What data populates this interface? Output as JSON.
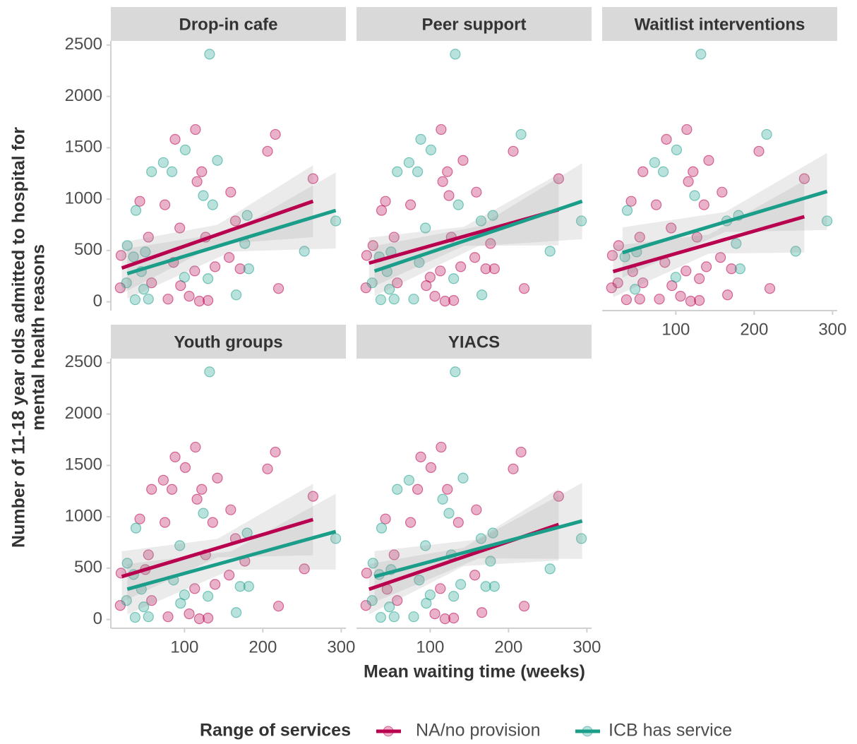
{
  "chart_data": {
    "type": "scatter",
    "x_label": "Mean waiting time (weeks)",
    "y_label": [
      "Number of 11-18 year olds admitted to hospital for",
      "mental health reasons"
    ],
    "legend_title": "Range of services",
    "series": [
      {
        "name": "NA/no provision",
        "color": "#b8004f"
      },
      {
        "name": "ICB has service",
        "color": "#1a9e8a"
      }
    ],
    "xlim": [
      6,
      306
    ],
    "ylim": [
      -85,
      2540
    ],
    "xticks": [
      100,
      200,
      300
    ],
    "yticks": [
      0,
      500,
      1000,
      1500,
      2000,
      2500
    ],
    "facets": [
      {
        "title": "Drop-in cafe",
        "series": [
          {
            "x": [
              114,
              88,
              216,
              206,
              122,
              116,
              264,
              159,
              43,
              75,
              165,
              94,
              54,
              127,
              19,
              157,
              86,
              139,
              171,
              113,
              58,
              95,
              220,
              18,
              106,
              79,
              130,
              119
            ],
            "y": [
              1678,
              1582,
              1630,
              1466,
              1267,
              1171,
              1199,
              1068,
              979,
              945,
              788,
              719,
              630,
              630,
              452,
              432,
              384,
              342,
              322,
              301,
              185,
              158,
              130,
              137,
              55,
              27,
              14,
              7
            ],
            "fit": {
              "x": [
                20,
                264
              ],
              "y": [
                329,
                979
              ]
            },
            "band": {
              "x": [
                20,
                142,
                264
              ],
              "lower": [
                80,
                560,
                630
              ],
              "upper": [
                580,
                750,
                1330
              ]
            }
          },
          {
            "x": [
              132,
              101,
              73,
              142,
              84,
              58,
              124,
              136,
              38,
              180,
              293,
              177,
              27,
              253,
              50,
              35,
              182,
              45,
              100,
              130,
              26,
              166,
              48,
              37,
              54
            ],
            "y": [
              2411,
              1479,
              1356,
              1377,
              1267,
              1267,
              1034,
              945,
              890,
              842,
              788,
              568,
              548,
              493,
              486,
              438,
              322,
              295,
              240,
              226,
              185,
              68,
              123,
              21,
              27
            ],
            "fit": {
              "x": [
                27,
                293
              ],
              "y": [
                275,
                890
              ]
            },
            "band": {
              "x": [
                27,
                160,
                293
              ],
              "lower": [
                30,
                490,
                520
              ],
              "upper": [
                520,
                680,
                1260
              ]
            }
          }
        ]
      },
      {
        "title": "Peer support",
        "series": [
          {
            "x": [
              114,
              206,
              142,
              122,
              116,
              264,
              124,
              159,
              43,
              75,
              38,
              54,
              127,
              177,
              27,
              19,
              157,
              139,
              171,
              182,
              113,
              100,
              58,
              95,
              220,
              18,
              106,
              130,
              119
            ],
            "y": [
              1678,
              1466,
              1377,
              1267,
              1171,
              1199,
              1034,
              1068,
              979,
              945,
              890,
              630,
              630,
              568,
              548,
              452,
              432,
              342,
              322,
              322,
              301,
              240,
              185,
              158,
              130,
              137,
              55,
              14,
              7
            ],
            "fit": {
              "x": [
                22,
                264
              ],
              "y": [
                377,
                897
              ]
            },
            "band": {
              "x": [
                22,
                143,
                264
              ],
              "lower": [
                130,
                545,
                550
              ],
              "upper": [
                625,
                730,
                1245
              ]
            }
          },
          {
            "x": [
              132,
              88,
              216,
              101,
              73,
              84,
              58,
              136,
              180,
              293,
              165,
              94,
              253,
              50,
              35,
              86,
              45,
              130,
              26,
              166,
              48,
              37,
              54,
              79
            ],
            "y": [
              2411,
              1582,
              1630,
              1479,
              1356,
              1267,
              1267,
              945,
              842,
              788,
              788,
              719,
              493,
              486,
              438,
              384,
              295,
              226,
              185,
              68,
              123,
              21,
              27,
              27
            ],
            "fit": {
              "x": [
                29,
                294
              ],
              "y": [
                300,
                979
              ]
            },
            "band": {
              "x": [
                29,
                162,
                294
              ],
              "lower": [
                55,
                545,
                610
              ],
              "upper": [
                545,
                735,
                1350
              ]
            }
          }
        ]
      },
      {
        "title": "Waitlist interventions",
        "series": [
          {
            "x": [
              114,
              88,
              206,
              142,
              58,
              122,
              116,
              264,
              159,
              136,
              43,
              75,
              94,
              54,
              127,
              27,
              19,
              157,
              86,
              139,
              171,
              113,
              45,
              130,
              58,
              26,
              95,
              220,
              18,
              166,
              106,
              37,
              54,
              79,
              130,
              119
            ],
            "y": [
              1678,
              1582,
              1466,
              1377,
              1267,
              1267,
              1171,
              1199,
              1068,
              945,
              979,
              945,
              719,
              630,
              630,
              548,
              452,
              432,
              384,
              342,
              322,
              301,
              295,
              226,
              185,
              185,
              158,
              130,
              137,
              68,
              55,
              21,
              27,
              27,
              14,
              7
            ],
            "fit": {
              "x": [
                20,
                264
              ],
              "y": [
                295,
                829
              ]
            },
            "band": {
              "x": [
                20,
                142,
                264
              ],
              "lower": [
                45,
                470,
                480
              ],
              "upper": [
                545,
                655,
                1180
              ]
            }
          },
          {
            "x": [
              132,
              216,
              101,
              73,
              84,
              124,
              38,
              180,
              293,
              165,
              177,
              253,
              50,
              35,
              182,
              100,
              48
            ],
            "y": [
              2411,
              1630,
              1479,
              1356,
              1267,
              1034,
              890,
              842,
              788,
              788,
              568,
              493,
              486,
              438,
              322,
              240,
              123
            ],
            "fit": {
              "x": [
                32,
                293
              ],
              "y": [
                479,
                1075
              ]
            },
            "band": {
              "x": [
                32,
                163,
                293
              ],
              "lower": [
                235,
                680,
                700
              ],
              "upper": [
                725,
                875,
                1450
              ]
            }
          }
        ]
      },
      {
        "title": "Youth groups",
        "series": [
          {
            "x": [
              114,
              88,
              216,
              101,
              206,
              73,
              142,
              84,
              58,
              122,
              116,
              264,
              159,
              136,
              43,
              75,
              165,
              54,
              127,
              177,
              253,
              50,
              19,
              157,
              139,
              113,
              58,
              220,
              18,
              106,
              79,
              130,
              119
            ],
            "y": [
              1678,
              1582,
              1630,
              1479,
              1466,
              1356,
              1377,
              1267,
              1267,
              1267,
              1171,
              1199,
              1068,
              945,
              979,
              945,
              788,
              630,
              630,
              568,
              493,
              486,
              452,
              432,
              342,
              301,
              185,
              130,
              137,
              55,
              27,
              14,
              7
            ],
            "fit": {
              "x": [
                20,
                264
              ],
              "y": [
                418,
                973
              ]
            },
            "band": {
              "x": [
                20,
                142,
                264
              ],
              "lower": [
                170,
                605,
                625
              ],
              "upper": [
                665,
                785,
                1320
              ]
            }
          },
          {
            "x": [
              132,
              124,
              38,
              180,
              293,
              94,
              27,
              35,
              86,
              171,
              182,
              45,
              100,
              130,
              26,
              95,
              166,
              48,
              37,
              54
            ],
            "y": [
              2411,
              1034,
              890,
              842,
              788,
              719,
              548,
              438,
              384,
              322,
              322,
              295,
              240,
              226,
              185,
              158,
              68,
              123,
              21,
              27
            ],
            "fit": {
              "x": [
                27,
                293
              ],
              "y": [
                295,
                856
              ]
            },
            "band": {
              "x": [
                27,
                160,
                293
              ],
              "lower": [
                50,
                485,
                485
              ],
              "upper": [
                540,
                665,
                1225
              ]
            }
          }
        ]
      },
      {
        "title": "YIACS",
        "series": [
          {
            "x": [
              114,
              88,
              216,
              101,
              206,
              84,
              122,
              264,
              159,
              136,
              43,
              75,
              54,
              19,
              157,
              113,
              45,
              58,
              220,
              18,
              166,
              106,
              130,
              119
            ],
            "y": [
              1678,
              1582,
              1630,
              1479,
              1466,
              1267,
              1267,
              1199,
              1068,
              945,
              979,
              945,
              630,
              452,
              432,
              301,
              295,
              185,
              130,
              137,
              68,
              55,
              14,
              7
            ],
            "fit": {
              "x": [
                22,
                264
              ],
              "y": [
                295,
                925
              ]
            },
            "band": {
              "x": [
                22,
                143,
                264
              ],
              "lower": [
                50,
                520,
                575
              ],
              "upper": [
                540,
                700,
                1275
              ]
            }
          },
          {
            "x": [
              132,
              73,
              142,
              58,
              116,
              124,
              38,
              180,
              293,
              165,
              94,
              127,
              177,
              27,
              253,
              50,
              35,
              86,
              139,
              171,
              182,
              100,
              130,
              26,
              95,
              48,
              37,
              54,
              79
            ],
            "y": [
              2411,
              1356,
              1377,
              1267,
              1171,
              1034,
              890,
              842,
              788,
              788,
              719,
              630,
              568,
              548,
              493,
              486,
              438,
              384,
              342,
              322,
              322,
              240,
              226,
              185,
              158,
              123,
              21,
              27,
              27
            ],
            "fit": {
              "x": [
                29,
                294
              ],
              "y": [
                418,
                959
              ]
            },
            "band": {
              "x": [
                29,
                162,
                294
              ],
              "lower": [
                170,
                595,
                590
              ],
              "upper": [
                665,
                780,
                1330
              ]
            }
          }
        ]
      }
    ]
  }
}
